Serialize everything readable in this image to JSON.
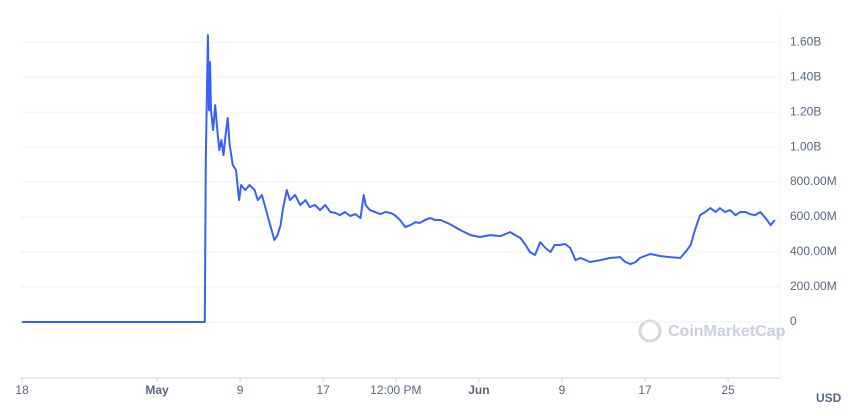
{
  "chart_data": {
    "type": "line",
    "watermark": "CoinMarketCap",
    "currency": "USD",
    "series": [
      {
        "color": "#3861fb",
        "x": [
          0,
          17.6,
          17.7,
          17.9,
          18.0,
          18.1,
          18.2,
          18.4,
          18.6,
          18.8,
          19.0,
          19.2,
          19.4,
          19.6,
          19.8,
          20.0,
          20.3,
          20.6,
          20.9,
          21.1,
          21.5,
          21.9,
          22.4,
          22.7,
          23.1,
          23.5,
          23.9,
          24.3,
          24.6,
          24.9,
          25.1,
          25.5,
          25.8,
          26.3,
          26.8,
          27.3,
          27.7,
          28.2,
          28.7,
          29.2,
          29.7,
          30.2,
          30.6,
          31.1,
          31.6,
          32.1,
          32.6,
          32.9,
          33.1,
          33.5,
          34.0,
          34.5,
          35.0,
          35.5,
          35.9,
          36.4,
          36.9,
          37.4,
          37.9,
          38.3,
          38.8,
          39.3,
          39.8,
          40.3,
          41.2,
          42.2,
          43.2,
          44.1,
          45.1,
          46.1,
          47.0,
          47.5,
          48.0,
          48.5,
          48.9,
          49.4,
          49.9,
          50.4,
          50.9,
          51.3,
          51.8,
          52.3,
          52.8,
          53.3,
          53.8,
          54.7,
          55.7,
          56.6,
          57.6,
          58.1,
          58.6,
          59.1,
          59.5,
          60.5,
          61.5,
          62.4,
          63.4,
          63.9,
          64.4,
          64.8,
          65.3,
          65.8,
          66.3,
          66.8,
          67.2,
          67.7,
          68.2,
          68.7,
          69.2,
          69.7,
          70.1,
          70.6,
          71.1,
          71.6,
          72.1,
          72.5
        ],
        "values": [
          0,
          0,
          926,
          1640,
          1211,
          1486,
          1211,
          1097,
          1240,
          1097,
          983,
          1040,
          954,
          1069,
          1166,
          1011,
          897,
          869,
          697,
          783,
          754,
          783,
          754,
          697,
          726,
          640,
          554,
          469,
          497,
          554,
          640,
          754,
          697,
          726,
          669,
          697,
          657,
          669,
          640,
          669,
          629,
          623,
          611,
          629,
          606,
          617,
          594,
          726,
          669,
          640,
          629,
          617,
          629,
          623,
          611,
          583,
          543,
          554,
          571,
          566,
          583,
          594,
          583,
          583,
          560,
          526,
          497,
          486,
          497,
          491,
          514,
          497,
          480,
          440,
          400,
          383,
          457,
          423,
          400,
          440,
          440,
          446,
          423,
          354,
          366,
          343,
          354,
          366,
          371,
          343,
          331,
          343,
          366,
          389,
          377,
          371,
          366,
          400,
          440,
          526,
          611,
          629,
          651,
          629,
          651,
          629,
          640,
          611,
          629,
          629,
          617,
          611,
          629,
          594,
          554,
          583
        ]
      }
    ],
    "xlim": [
      -0.2,
      73
    ],
    "xticks": [
      {
        "value": 0,
        "label": "18"
      },
      {
        "value": 13,
        "label": "May",
        "bold": true
      },
      {
        "value": 21,
        "label": "9"
      },
      {
        "value": 29,
        "label": "17"
      },
      {
        "value": 36,
        "label": "12:00 PM"
      },
      {
        "value": 44,
        "label": "Jun",
        "bold": true
      },
      {
        "value": 52,
        "label": "9"
      },
      {
        "value": 60,
        "label": "17"
      },
      {
        "value": 68,
        "label": "25"
      }
    ],
    "ylim": [
      -320,
      1755
    ],
    "yticks": [
      {
        "value": 0,
        "label": "0"
      },
      {
        "value": 200,
        "label": "200.00M"
      },
      {
        "value": 400,
        "label": "400.00M"
      },
      {
        "value": 600,
        "label": "600.00M"
      },
      {
        "value": 800,
        "label": "800.00M"
      },
      {
        "value": 1000,
        "label": "1.00B"
      },
      {
        "value": 1200,
        "label": "1.20B"
      },
      {
        "value": 1400,
        "label": "1.40B"
      },
      {
        "value": 1600,
        "label": "1.60B"
      }
    ],
    "grid": true
  }
}
